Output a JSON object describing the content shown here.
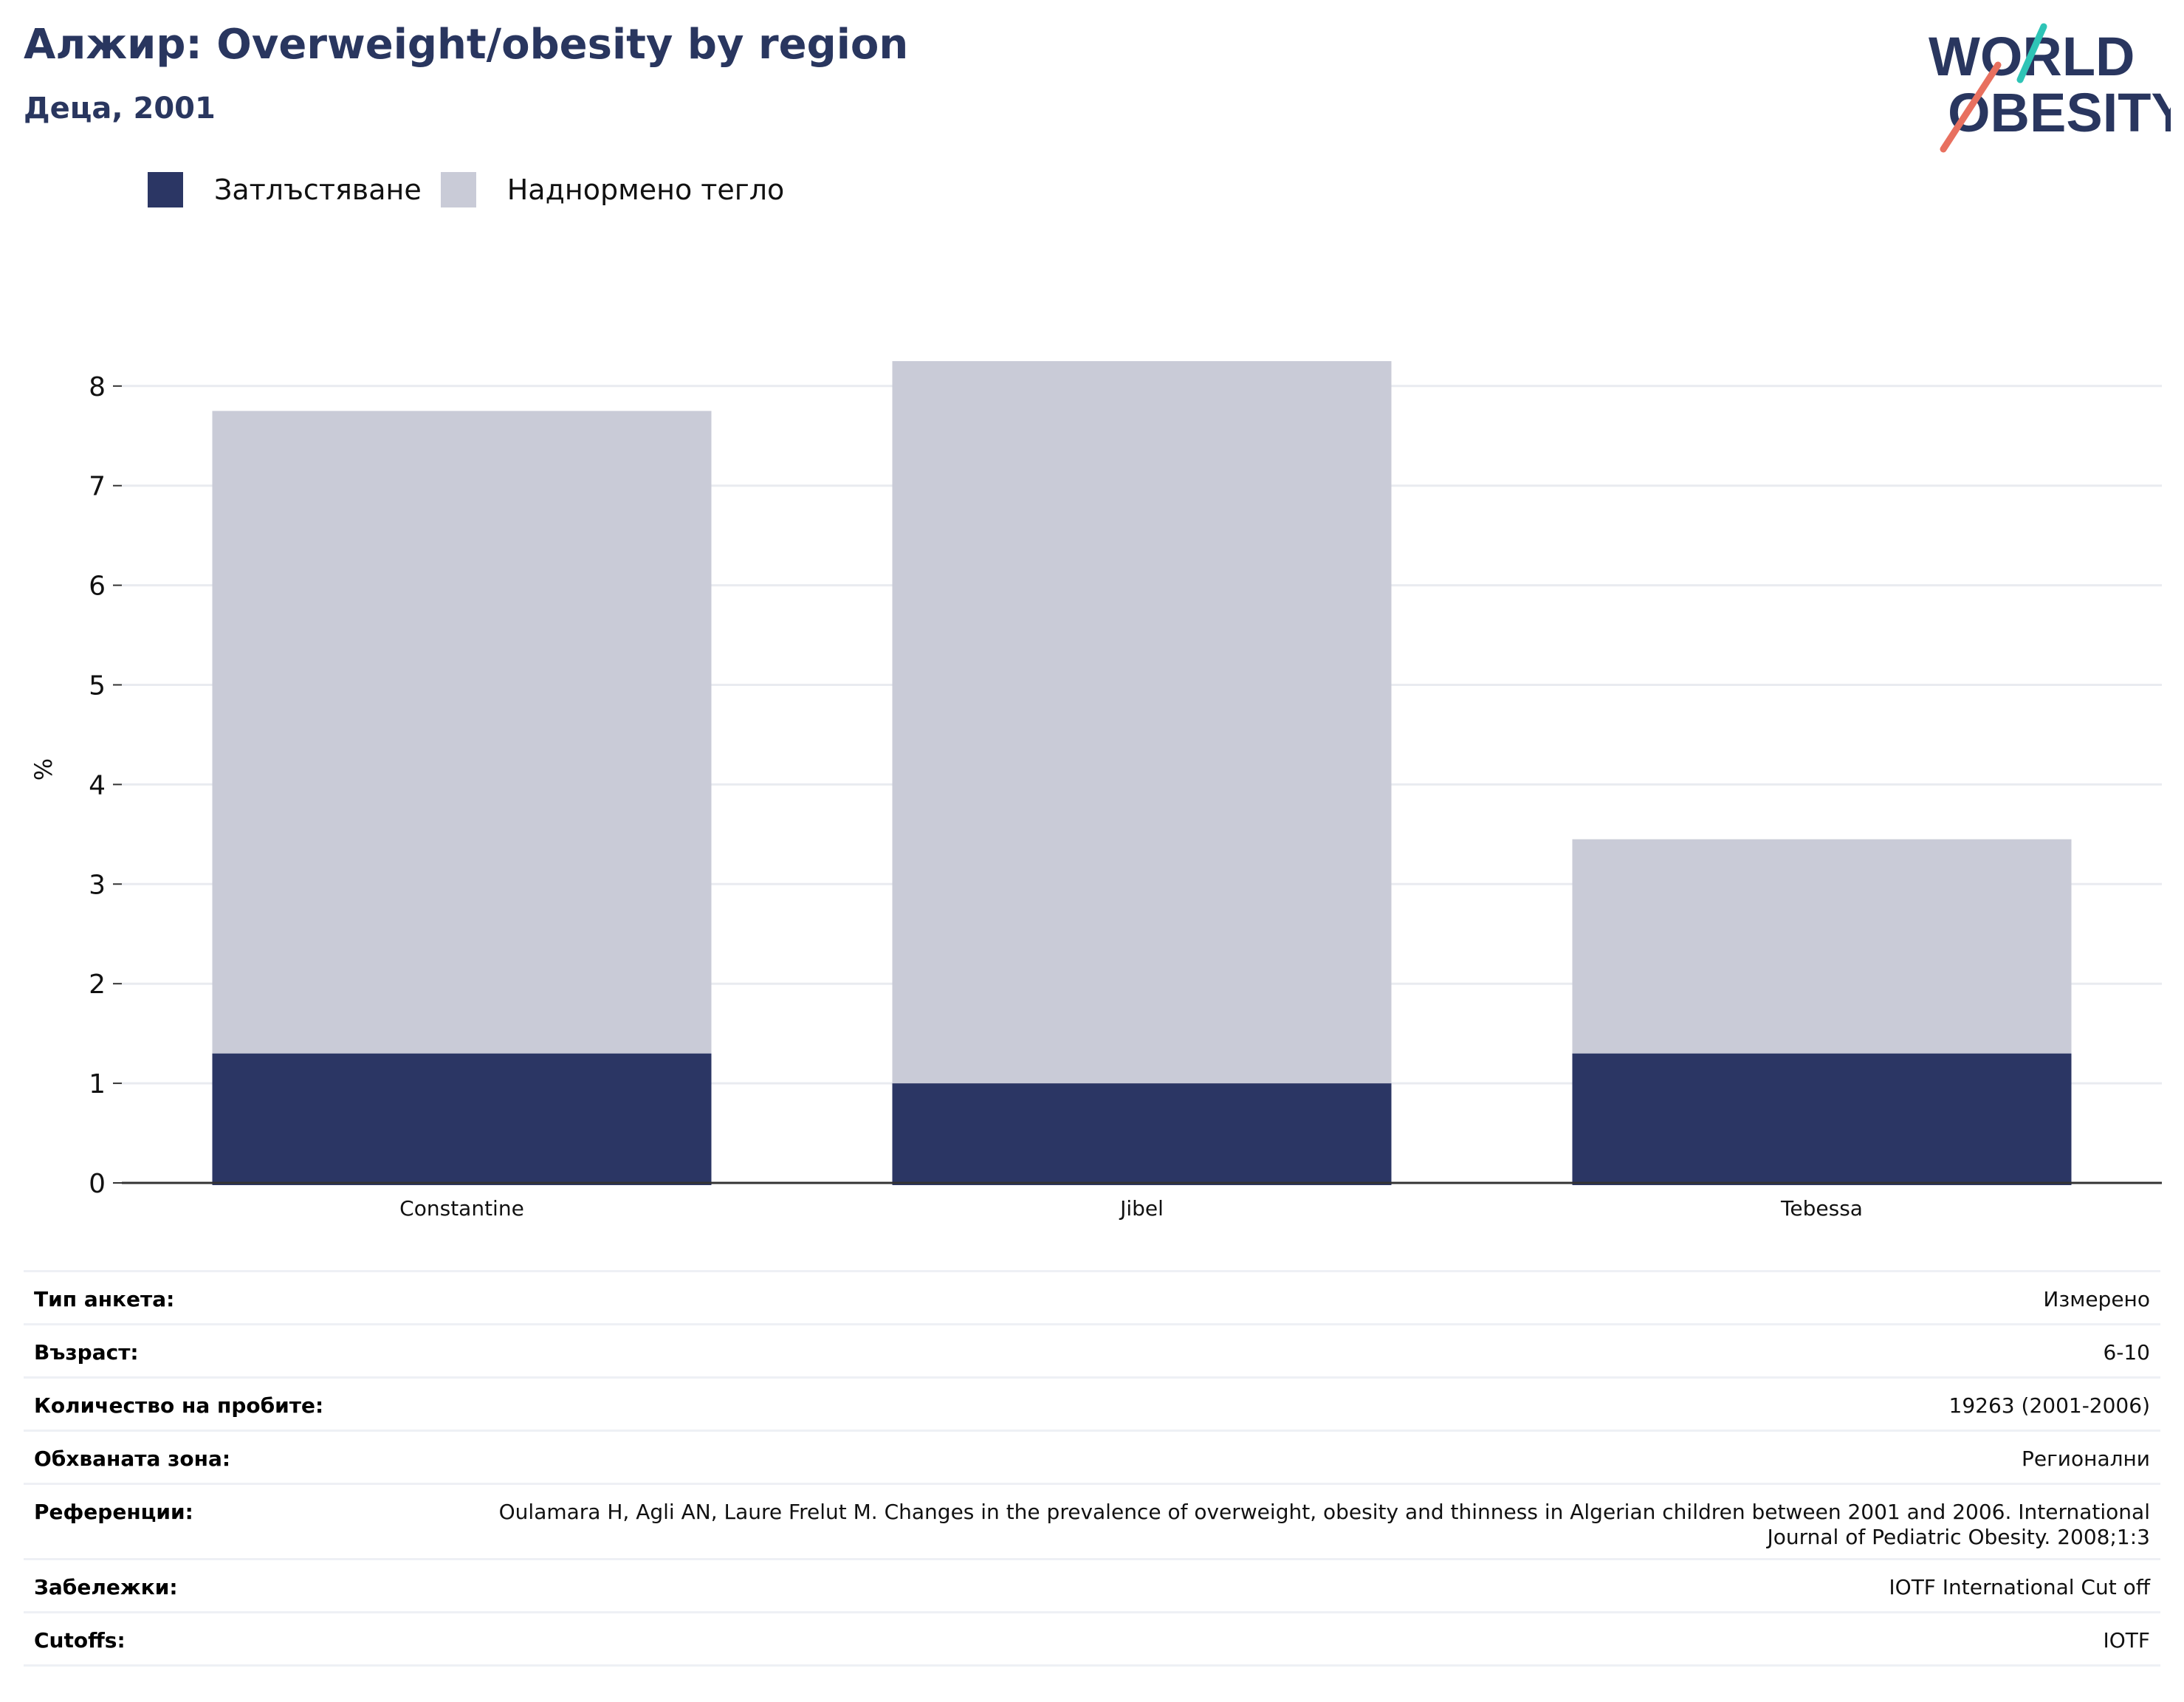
{
  "header": {
    "title": "Алжир: Overweight/obesity by region",
    "subtitle": "Деца, 2001"
  },
  "logo": {
    "line1": "WORLD",
    "line2": "OBESITY"
  },
  "colors": {
    "obesity": "#2b3664",
    "overweight": "#c9cbd7",
    "title": "#29365f",
    "grid": "#e9ebf0",
    "axis": "#333333",
    "logo_teal": "#2ec4b6",
    "logo_coral": "#e8705f"
  },
  "legend": [
    {
      "label": "Затлъстяване",
      "color": "#2b3664"
    },
    {
      "label": "Наднормено тегло",
      "color": "#c9cbd7"
    }
  ],
  "chart_data": {
    "type": "bar",
    "stacked": true,
    "categories": [
      "Constantine",
      "Jibel",
      "Tebessa"
    ],
    "series": [
      {
        "name": "Затлъстяване",
        "values": [
          1.3,
          1.0,
          1.3
        ]
      },
      {
        "name": "Наднормено тегло",
        "values": [
          6.45,
          7.25,
          2.15
        ]
      }
    ],
    "ylabel": "%",
    "ylim": [
      0,
      8.5
    ],
    "yticks": [
      0,
      1,
      2,
      3,
      4,
      5,
      6,
      7,
      8
    ],
    "grid": true,
    "legend_position": "top-left"
  },
  "details": [
    {
      "key": "Тип анкета:",
      "value": "Измерено"
    },
    {
      "key": "Възраст:",
      "value": "6-10"
    },
    {
      "key": "Количество на пробите:",
      "value": "19263 (2001-2006)"
    },
    {
      "key": "Обхваната зона:",
      "value": "Регионални"
    },
    {
      "key": "Референции:",
      "value": "Oulamara H, Agli AN, Laure Frelut M. Changes in the prevalence of overweight, obesity and thinness in Algerian children between 2001 and 2006. International Journal of Pediatric Obesity. 2008;1:3"
    },
    {
      "key": "Забележки:",
      "value": "IOTF International Cut off"
    },
    {
      "key": "Cutoffs:",
      "value": "IOTF"
    }
  ]
}
